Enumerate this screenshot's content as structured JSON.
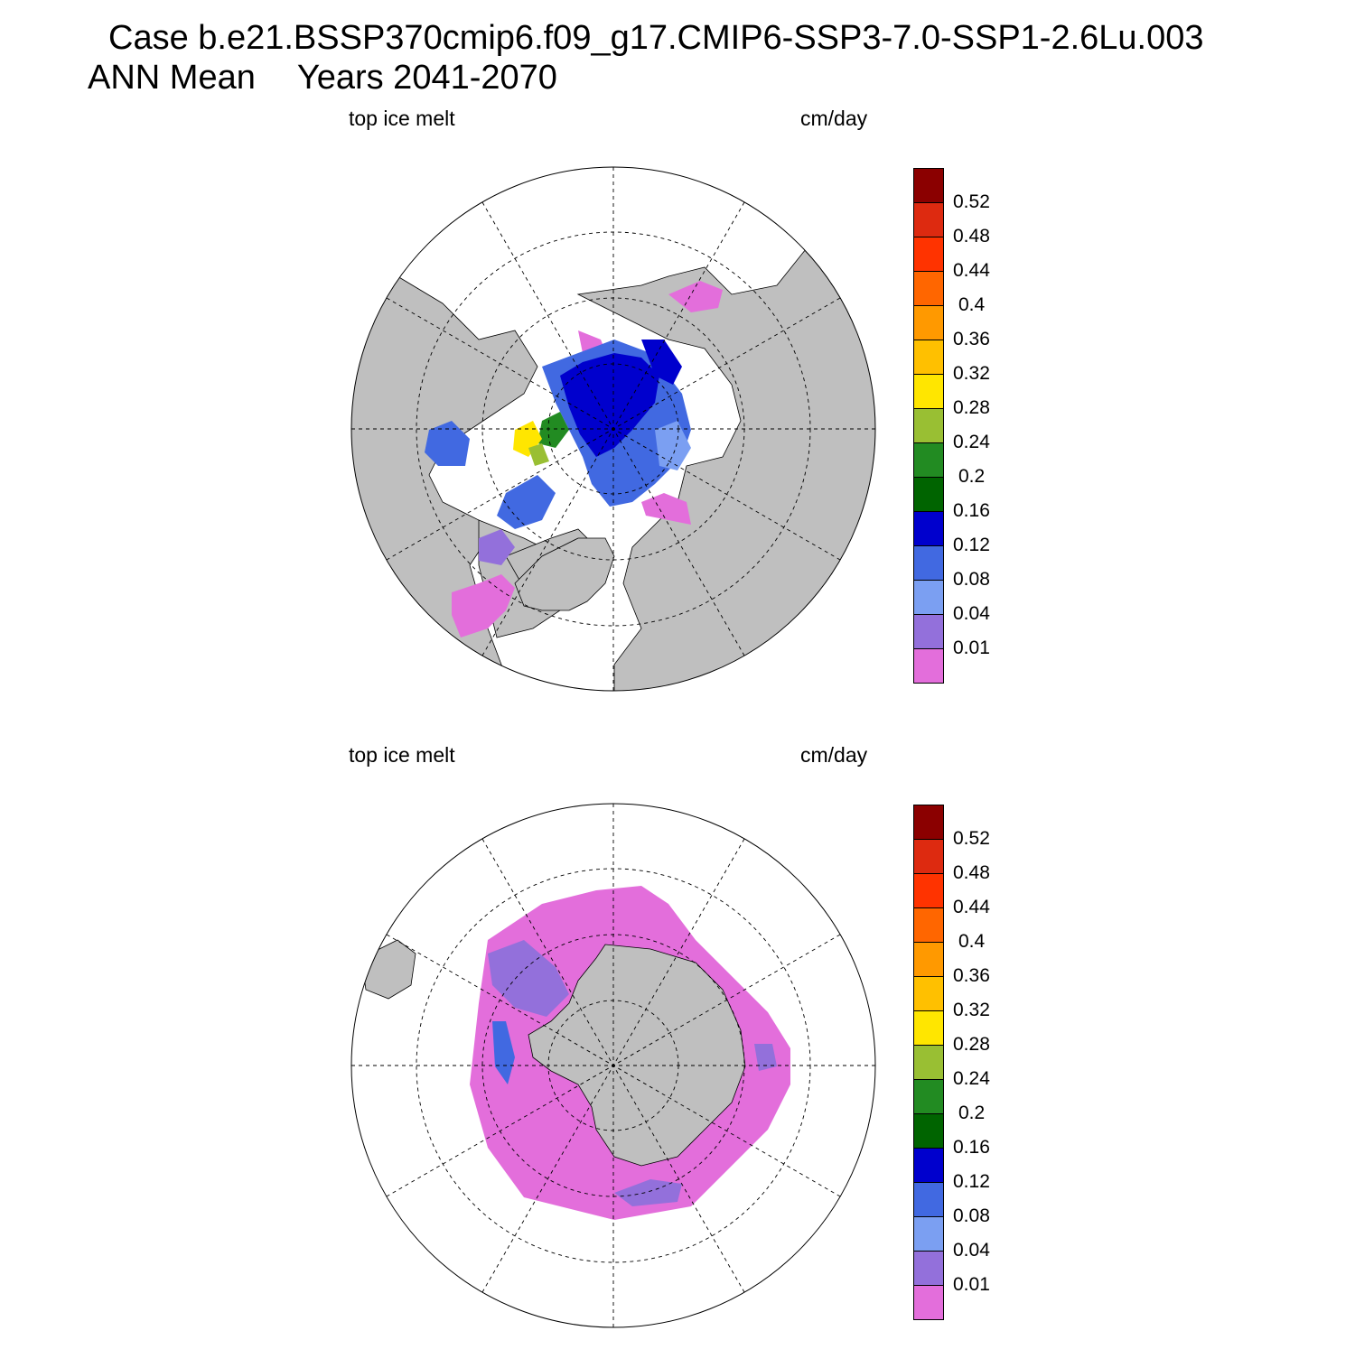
{
  "header": {
    "case_line": "Case b.e21.BSSP370cmip6.f09_g17.CMIP6-SSP3-7.0-SSP1-2.6Lu.003",
    "period": "ANN Mean",
    "years": "Years 2041-2070"
  },
  "panels": [
    {
      "id": "north",
      "hemisphere": "Northern Hemisphere (Arctic)",
      "variable": "top ice melt",
      "units": "cm/day"
    },
    {
      "id": "south",
      "hemisphere": "Southern Hemisphere (Antarctic)",
      "variable": "top ice melt",
      "units": "cm/day"
    }
  ],
  "colorbar": {
    "labels": [
      "0.52",
      "0.48",
      "0.44",
      "0.4",
      "0.36",
      "0.32",
      "0.28",
      "0.24",
      "0.2",
      "0.16",
      "0.12",
      "0.08",
      "0.04",
      "0.01"
    ],
    "colors_top_to_bottom": [
      "#8b0000",
      "#dd2a10",
      "#ff3300",
      "#ff6600",
      "#ff9900",
      "#ffc000",
      "#ffe600",
      "#99bf33",
      "#228b22",
      "#006400",
      "#0000cd",
      "#4169e1",
      "#7b9ff2",
      "#9370db",
      "#e36edb"
    ]
  },
  "palette": {
    "land": "#bfbfbf",
    "ocean": "#ffffff",
    "grid": "#000000"
  }
}
